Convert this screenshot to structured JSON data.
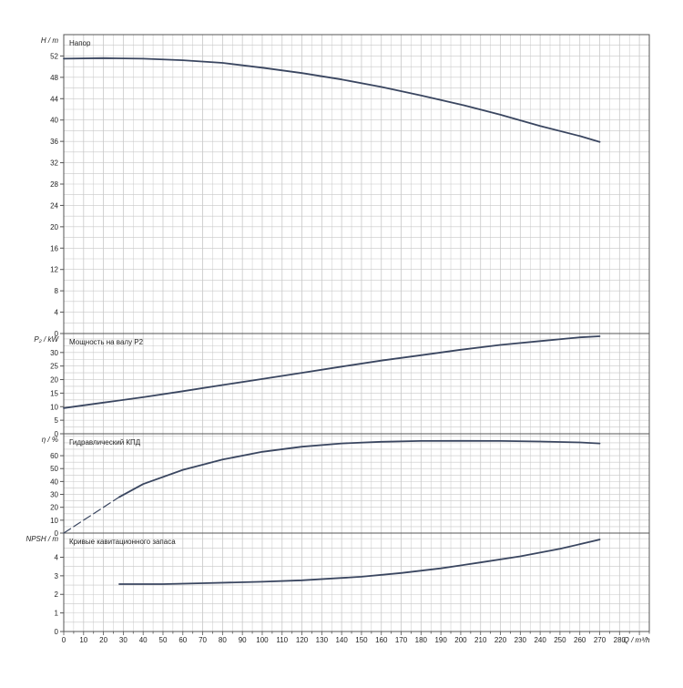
{
  "colors": {
    "curve": "#3a4660",
    "grid": "#c8c8c8",
    "frame": "#555555",
    "background": "#ffffff"
  },
  "x_axis": {
    "label": "Q / m³/h",
    "ticks": [
      "0",
      "10",
      "20",
      "30",
      "40",
      "50",
      "60",
      "70",
      "80",
      "90",
      "100",
      "110",
      "120",
      "130",
      "140",
      "150",
      "160",
      "170",
      "180",
      "190",
      "200",
      "210",
      "220",
      "230",
      "240",
      "250",
      "260",
      "270",
      "280"
    ],
    "range": [
      0,
      295
    ]
  },
  "chart_data": [
    {
      "type": "line",
      "panel_title": "Напор",
      "ylabel": "H / m",
      "ylim": [
        0,
        56
      ],
      "yticks": [
        "0",
        "4",
        "8",
        "12",
        "16",
        "20",
        "24",
        "28",
        "32",
        "36",
        "40",
        "44",
        "48",
        "52"
      ],
      "grid": true,
      "series": [
        {
          "x": [
            0,
            20,
            40,
            60,
            80,
            100,
            120,
            140,
            160,
            180,
            200,
            220,
            240,
            260,
            270
          ],
          "y": [
            51.5,
            51.6,
            51.5,
            51.2,
            50.7,
            49.8,
            48.8,
            47.6,
            46.2,
            44.6,
            42.9,
            41.0,
            38.9,
            37.0,
            35.9
          ]
        }
      ]
    },
    {
      "type": "line",
      "panel_title": "Мощность на валу P2",
      "ylabel": "P₂ / kW",
      "ylim": [
        0,
        37
      ],
      "yticks": [
        "0",
        "5",
        "10",
        "15",
        "20",
        "25",
        "30"
      ],
      "grid": true,
      "series": [
        {
          "x": [
            0,
            20,
            40,
            60,
            80,
            100,
            120,
            140,
            160,
            180,
            200,
            220,
            240,
            260,
            270
          ],
          "y": [
            9.5,
            11.5,
            13.5,
            15.7,
            18.0,
            20.2,
            22.5,
            24.8,
            27.0,
            29.0,
            31.0,
            32.8,
            34.2,
            35.6,
            36.0
          ]
        }
      ]
    },
    {
      "type": "line",
      "panel_title": "Гидравлический КПД",
      "ylabel": "η / %",
      "ylim": [
        0,
        77
      ],
      "yticks": [
        "0",
        "10",
        "20",
        "30",
        "40",
        "50",
        "60"
      ],
      "grid": true,
      "series": [
        {
          "style": "dashed",
          "x": [
            0,
            5,
            10,
            15,
            20,
            25,
            28
          ],
          "y": [
            0,
            5,
            10,
            15,
            20,
            25,
            28
          ]
        },
        {
          "style": "solid",
          "x": [
            28,
            40,
            60,
            80,
            100,
            120,
            140,
            160,
            180,
            200,
            220,
            240,
            260,
            270
          ],
          "y": [
            28,
            38,
            49,
            57,
            63,
            67,
            69.5,
            70.8,
            71.4,
            71.5,
            71.4,
            71.0,
            70.3,
            69.5
          ]
        }
      ]
    },
    {
      "type": "line",
      "panel_title": "Кривые кавитационного запаса",
      "ylabel": "NPSH / m",
      "ylim": [
        0,
        5.3
      ],
      "yticks": [
        "0",
        "1",
        "2",
        "3",
        "4"
      ],
      "grid": true,
      "series": [
        {
          "x": [
            28,
            50,
            70,
            100,
            120,
            150,
            170,
            190,
            210,
            230,
            250,
            270
          ],
          "y": [
            2.55,
            2.55,
            2.6,
            2.68,
            2.76,
            2.95,
            3.15,
            3.4,
            3.72,
            4.05,
            4.45,
            4.95
          ]
        }
      ]
    }
  ]
}
